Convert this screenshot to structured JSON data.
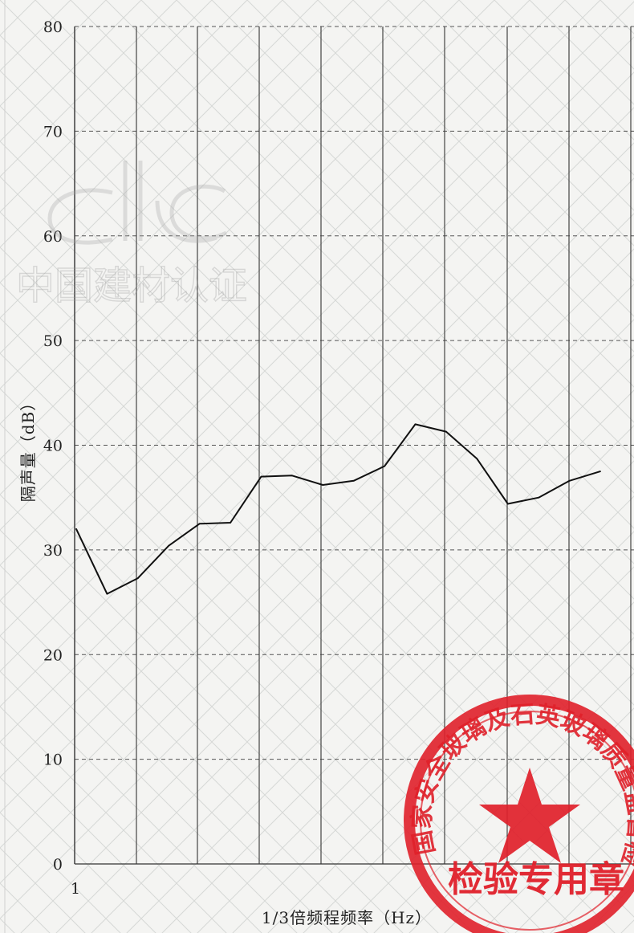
{
  "chart_data": {
    "type": "line",
    "title": "",
    "xlabel": "1/3倍频程频率（Hz）",
    "ylabel": "隔声量（dB）",
    "ylim": [
      0,
      80
    ],
    "yticks": [
      "0",
      "10",
      "20",
      "30",
      "40",
      "50",
      "60",
      "70",
      "80"
    ],
    "xticks_visible": [
      "1"
    ],
    "grid": true,
    "series": [
      {
        "values": [
          32.0,
          25.8,
          27.3,
          30.4,
          32.5,
          32.6,
          37.0,
          37.1,
          36.2,
          36.6,
          38.0,
          42.0,
          41.3,
          38.7,
          34.4,
          35.0,
          36.6,
          37.5
        ]
      }
    ],
    "line_color": "#111111"
  },
  "watermark": {
    "text": "中国建材认证",
    "logo": "ctc-logo"
  },
  "seal": {
    "center_text": "检验专用章",
    "ring_text": "国家安全玻璃及石英玻璃质量监督检验中心",
    "emblem": "star-icon",
    "color": "#e0202a"
  }
}
